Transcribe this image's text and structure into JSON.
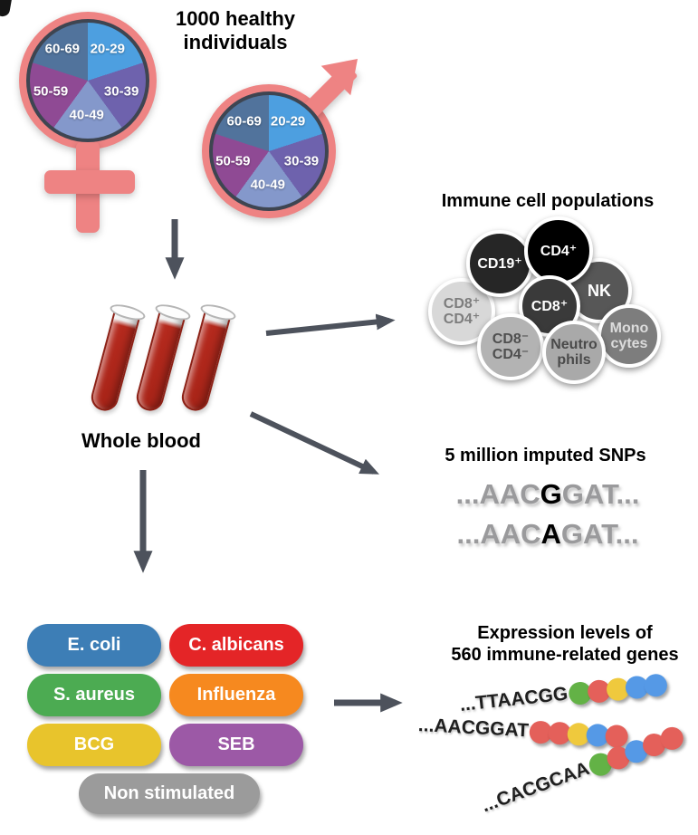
{
  "figure": {
    "title_line1": "1000 healthy",
    "title_line2": "individuals"
  },
  "demographics": {
    "symbol_color": "#ee8383",
    "age_groups": [
      {
        "label": "20-29",
        "color": "#4d9fe0"
      },
      {
        "label": "30-39",
        "color": "#6e62ad"
      },
      {
        "label": "40-49",
        "color": "#8498cb"
      },
      {
        "label": "50-59",
        "color": "#8f4a94"
      },
      {
        "label": "60-69",
        "color": "#51739c"
      }
    ]
  },
  "whole_blood": {
    "label": "Whole blood",
    "tube_count": 3,
    "tube_color": "#b52a1e"
  },
  "immune_cells": {
    "title": "Immune cell populations",
    "cells": [
      {
        "line1": "CD8⁺",
        "line2": "CD4⁺",
        "color": "#d8d8d8"
      },
      {
        "line1": "NK",
        "color": "#575757"
      },
      {
        "line1": "CD19⁺",
        "color": "#262626"
      },
      {
        "line1": "CD4⁺",
        "color": "#000000"
      },
      {
        "line1": "Mono",
        "line2": "cytes",
        "color": "#7d7d7d"
      },
      {
        "line1": "CD8⁺",
        "color": "#3a3a3a"
      },
      {
        "line1": "CD8⁻",
        "line2": "CD4⁻",
        "color": "#b3b3b3"
      },
      {
        "line1": "Neutro",
        "line2": "phils",
        "color": "#a9a9a9"
      }
    ]
  },
  "snps": {
    "title": "5 million imputed SNPs",
    "sequences": [
      {
        "prefix": "...AAC",
        "variant": "G",
        "suffix": "GAT..."
      },
      {
        "prefix": "...AAC",
        "variant": "A",
        "suffix": "GAT..."
      }
    ]
  },
  "stimuli": {
    "items": [
      {
        "label": "E. coli",
        "color": "#3d7eb6"
      },
      {
        "label": "C. albicans",
        "color": "#e42527"
      },
      {
        "label": "S. aureus",
        "color": "#4cab52"
      },
      {
        "label": "Influenza",
        "color": "#f6891f"
      },
      {
        "label": "BCG",
        "color": "#e8c42c"
      },
      {
        "label": "SEB",
        "color": "#9c59a6"
      },
      {
        "label": "Non stimulated",
        "color": "#9b9b9b"
      }
    ]
  },
  "expression": {
    "title_line1": "Expression levels of",
    "title_line2": "560 immune-related genes",
    "genes": [
      {
        "sequence": "...TTAACGG",
        "dots": [
          "green",
          "red",
          "yellow",
          "blue",
          "blue"
        ]
      },
      {
        "sequence": "...AACGGAT",
        "dots": [
          "red",
          "red",
          "yellow",
          "blue",
          "red"
        ]
      },
      {
        "sequence": "...CACGCAA",
        "dots": [
          "green",
          "red",
          "blue",
          "red",
          "red"
        ]
      }
    ],
    "dot_colors": {
      "green": "#63b246",
      "red": "#e4605a",
      "yellow": "#efc93d",
      "blue": "#5599e6"
    }
  },
  "arrow_color": "#4d525c"
}
